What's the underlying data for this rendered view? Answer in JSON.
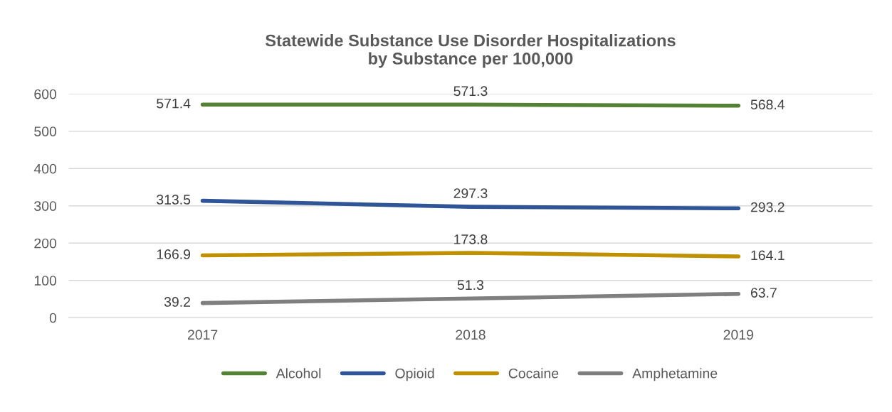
{
  "chart_data": {
    "type": "line",
    "title": "Statewide Substance Use Disorder Hospitalizations\nby Substance per 100,000",
    "categories": [
      "2017",
      "2018",
      "2019"
    ],
    "series": [
      {
        "name": "Alcohol",
        "color": "#548235",
        "values": [
          571.4,
          571.3,
          568.4
        ]
      },
      {
        "name": "Opioid",
        "color": "#2f5597",
        "values": [
          313.5,
          297.3,
          293.2
        ]
      },
      {
        "name": "Cocaine",
        "color": "#bf9000",
        "values": [
          166.9,
          173.8,
          164.1
        ]
      },
      {
        "name": "Amphetamine",
        "color": "#7f7f7f",
        "values": [
          39.2,
          51.3,
          63.7
        ]
      }
    ],
    "ylim": [
      0,
      600
    ],
    "yticks": [
      0,
      100,
      200,
      300,
      400,
      500,
      600
    ],
    "grid": "y",
    "legend": "bottom",
    "data_labels": true,
    "marker": "none",
    "line_style": "solid"
  }
}
